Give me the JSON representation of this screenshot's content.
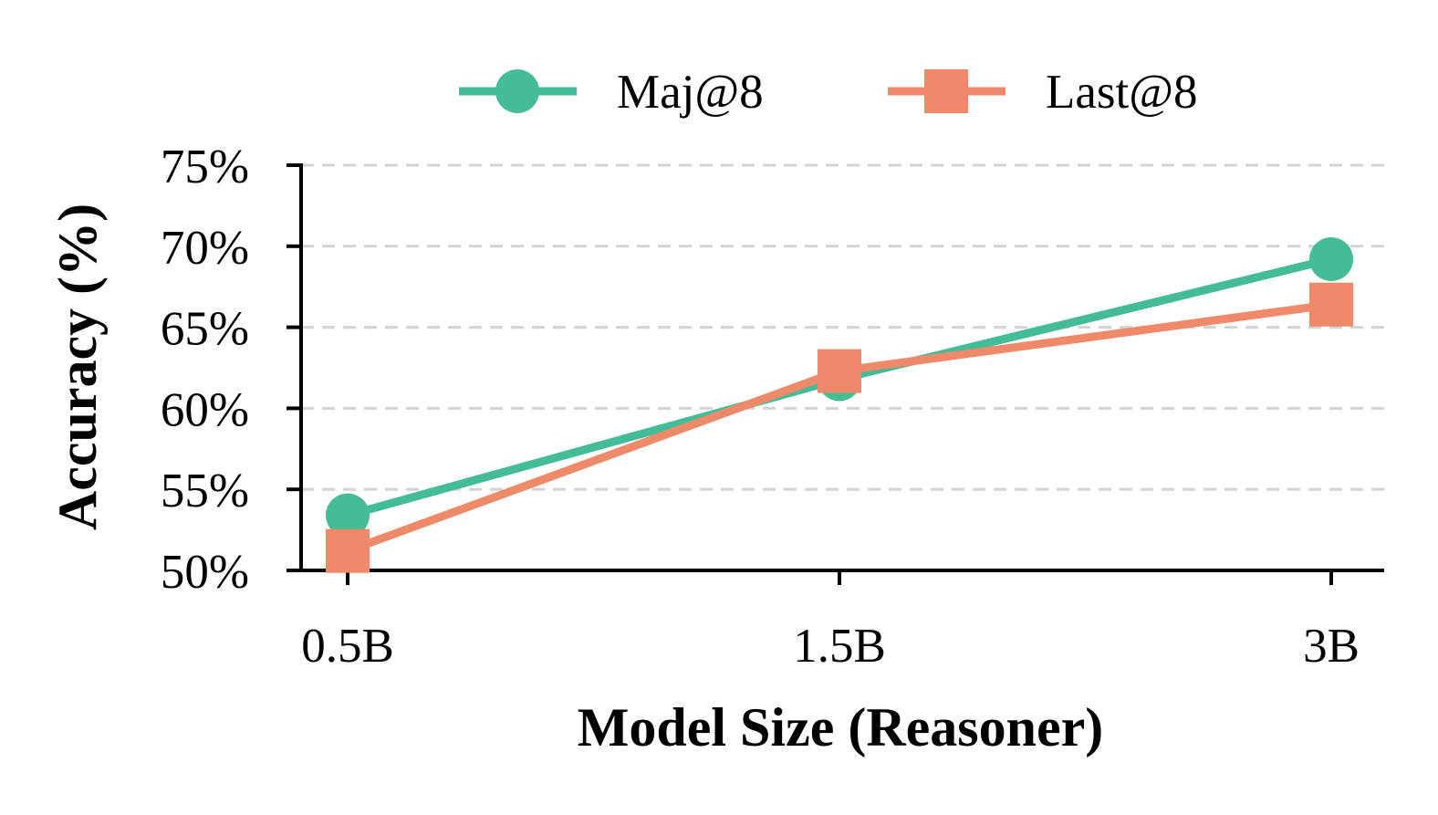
{
  "chart_data": {
    "type": "line",
    "categories": [
      "0.5B",
      "1.5B",
      "3B"
    ],
    "xlabel": "Model Size (Reasoner)",
    "ylabel": "Accuracy (%)",
    "ylim": [
      50,
      75
    ],
    "yticks": [
      50,
      55,
      60,
      65,
      70,
      75
    ],
    "ytick_labels": [
      "50%",
      "55%",
      "60%",
      "65%",
      "70%",
      "75%"
    ],
    "grid": "horizontal dashed",
    "legend_position": "top-center",
    "series": [
      {
        "name": "Maj@8",
        "values": [
          53.4,
          61.8,
          69.2
        ],
        "color": "#45BC98",
        "marker": "circle"
      },
      {
        "name": "Last@8",
        "values": [
          51.2,
          62.3,
          66.4
        ],
        "color": "#EE8A69",
        "marker": "square"
      }
    ]
  }
}
